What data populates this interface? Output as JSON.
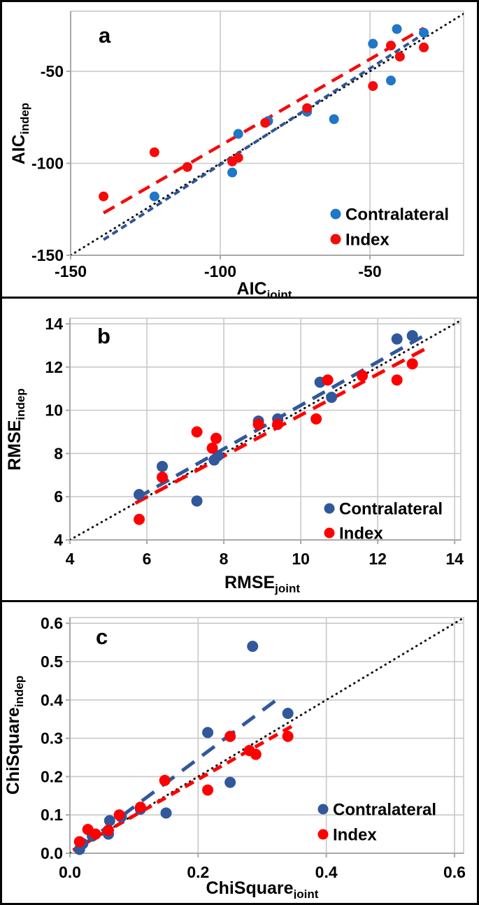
{
  "figure": {
    "background": "#ffffff",
    "border_color": "#060606",
    "grid_color": "#c9c9c9",
    "axis_color": "#a8a8a8",
    "identity_color": "#111111",
    "legend": {
      "items": [
        {
          "label": "Contralateral"
        },
        {
          "label": "Index"
        }
      ]
    }
  },
  "chart_data": [
    {
      "type": "scatter",
      "panel_label": "a",
      "xlabel": "AIC_joint",
      "ylabel": "AIC_indep",
      "x_axis": {
        "title_base": "AIC",
        "title_sub": "joint",
        "lim": [
          -150,
          -18.7
        ],
        "ticks": [
          {
            "v": -150,
            "label": "-150"
          },
          {
            "v": -100,
            "label": "-100"
          },
          {
            "v": -50,
            "label": "-50"
          }
        ]
      },
      "y_axis": {
        "title_base": "AIC",
        "title_sub": "indep",
        "lim": [
          -150,
          -17.3
        ],
        "ticks": [
          {
            "v": -50,
            "label": "-50"
          },
          {
            "v": -100,
            "label": "-100"
          },
          {
            "v": -150,
            "label": "-150"
          }
        ]
      },
      "series": [
        {
          "name": "Contralateral",
          "marker_color": "#2076C7",
          "points": [
            [
              -122,
              -118
            ],
            [
              -96,
              -105
            ],
            [
              -94,
              -84
            ],
            [
              -84,
              -77
            ],
            [
              -71,
              -72
            ],
            [
              -62,
              -76
            ],
            [
              -49,
              -35
            ],
            [
              -43,
              -55
            ],
            [
              -41,
              -27
            ],
            [
              -32,
              -29
            ]
          ]
        },
        {
          "name": "Index",
          "marker_color": "#F40B0B",
          "points": [
            [
              -139,
              -118
            ],
            [
              -122,
              -94
            ],
            [
              -111,
              -102
            ],
            [
              -96,
              -99
            ],
            [
              -94,
              -97
            ],
            [
              -85,
              -78
            ],
            [
              -71,
              -70
            ],
            [
              -49,
              -58
            ],
            [
              -43,
              -36
            ],
            [
              -40,
              -42
            ],
            [
              -32,
              -37
            ]
          ]
        }
      ],
      "trend_lines": [
        {
          "series": "Contralateral",
          "color": "#2F5597",
          "dash": [
            9,
            6
          ],
          "width": 4,
          "from": [
            -139,
            -141.5
          ],
          "to": [
            -30,
            -27.5
          ]
        },
        {
          "series": "Index",
          "color": "#F40B0B",
          "dash": [
            18,
            11
          ],
          "width": 4.5,
          "from": [
            -139,
            -127
          ],
          "to": [
            -32,
            -26.5
          ]
        }
      ],
      "identity_line": {
        "from": [
          -150,
          -150
        ],
        "to": [
          -18.7,
          -18.7
        ]
      },
      "legend_labels": [
        "Contralateral",
        "Index"
      ]
    },
    {
      "type": "scatter",
      "panel_label": "b",
      "xlabel": "RMSE_joint",
      "ylabel": "RMSE_indep",
      "x_axis": {
        "title_base": "RMSE",
        "title_sub": "joint",
        "lim": [
          4,
          14.16
        ],
        "ticks": [
          {
            "v": 4,
            "label": "4"
          },
          {
            "v": 6,
            "label": "6"
          },
          {
            "v": 8,
            "label": "8"
          },
          {
            "v": 10,
            "label": "10"
          },
          {
            "v": 12,
            "label": "12"
          },
          {
            "v": 14,
            "label": "14"
          }
        ]
      },
      "y_axis": {
        "title_base": "RMSE",
        "title_sub": "indep",
        "lim": [
          4,
          14.26
        ],
        "ticks": [
          {
            "v": 14,
            "label": "14"
          },
          {
            "v": 12,
            "label": "12"
          },
          {
            "v": 10,
            "label": "10"
          },
          {
            "v": 8,
            "label": "8"
          },
          {
            "v": 6,
            "label": "6"
          },
          {
            "v": 4,
            "label": "4"
          }
        ]
      },
      "series": [
        {
          "name": "Contralateral",
          "marker_color": "#30589B",
          "points": [
            [
              5.8,
              6.1
            ],
            [
              6.4,
              7.4
            ],
            [
              7.3,
              5.8
            ],
            [
              7.75,
              7.7
            ],
            [
              7.85,
              7.9
            ],
            [
              8.9,
              9.5
            ],
            [
              9.4,
              9.6
            ],
            [
              10.5,
              11.3
            ],
            [
              10.8,
              10.6
            ],
            [
              12.5,
              13.3
            ],
            [
              12.9,
              13.45
            ]
          ]
        },
        {
          "name": "Index",
          "marker_color": "#FF0000",
          "points": [
            [
              5.8,
              4.95
            ],
            [
              6.4,
              6.9
            ],
            [
              7.3,
              9.0
            ],
            [
              7.7,
              8.25
            ],
            [
              7.8,
              8.7
            ],
            [
              8.9,
              9.35
            ],
            [
              9.4,
              9.35
            ],
            [
              10.4,
              9.6
            ],
            [
              10.7,
              11.4
            ],
            [
              11.6,
              11.6
            ],
            [
              12.5,
              11.4
            ],
            [
              12.9,
              12.15
            ]
          ]
        }
      ],
      "trend_lines": [
        {
          "series": "Contralateral",
          "color": "#30589B",
          "dash": [
            20,
            12
          ],
          "width": 5,
          "from": [
            5.75,
            5.95
          ],
          "to": [
            13.15,
            13.4
          ]
        },
        {
          "series": "Index",
          "color": "#FF0000",
          "dash": [
            20,
            12
          ],
          "width": 5,
          "from": [
            5.7,
            5.7
          ],
          "to": [
            13.35,
            12.95
          ]
        }
      ],
      "identity_line": {
        "from": [
          4,
          4
        ],
        "to": [
          14.16,
          14.16
        ]
      },
      "legend_labels": [
        "Contralateral",
        "Index"
      ]
    },
    {
      "type": "scatter",
      "panel_label": "c",
      "xlabel": "ChiSquare_joint",
      "ylabel": "ChiSquare_indep",
      "x_axis": {
        "title_base": "ChiSquare",
        "title_sub": "joint",
        "lim": [
          0,
          0.6142
        ],
        "ticks": [
          {
            "v": 0,
            "label": "0.0"
          },
          {
            "v": 0.2,
            "label": "0.2"
          },
          {
            "v": 0.4,
            "label": "0.4"
          },
          {
            "v": 0.6,
            "label": "0.6"
          }
        ]
      },
      "y_axis": {
        "title_base": "ChiSquare",
        "title_sub": "indep",
        "lim": [
          0,
          0.615
        ],
        "ticks": [
          {
            "v": 0.6,
            "label": "0.6"
          },
          {
            "v": 0.5,
            "label": "0.5"
          },
          {
            "v": 0.4,
            "label": "0.4"
          },
          {
            "v": 0.3,
            "label": "0.3"
          },
          {
            "v": 0.2,
            "label": "0.2"
          },
          {
            "v": 0.1,
            "label": "0.1"
          },
          {
            "v": 0,
            "label": "0.0"
          }
        ]
      },
      "series": [
        {
          "name": "Contralateral",
          "marker_color": "#30589B",
          "points": [
            [
              0.015,
              0.01
            ],
            [
              0.02,
              0.025
            ],
            [
              0.035,
              0.045
            ],
            [
              0.06,
              0.05
            ],
            [
              0.062,
              0.085
            ],
            [
              0.08,
              0.095
            ],
            [
              0.11,
              0.115
            ],
            [
              0.15,
              0.105
            ],
            [
              0.215,
              0.315
            ],
            [
              0.25,
              0.185
            ],
            [
              0.285,
              0.54
            ],
            [
              0.34,
              0.365
            ]
          ]
        },
        {
          "name": "Index",
          "marker_color": "#FF0000",
          "points": [
            [
              0.015,
              0.03
            ],
            [
              0.028,
              0.062
            ],
            [
              0.04,
              0.05
            ],
            [
              0.06,
              0.06
            ],
            [
              0.077,
              0.1
            ],
            [
              0.11,
              0.12
            ],
            [
              0.148,
              0.19
            ],
            [
              0.215,
              0.165
            ],
            [
              0.25,
              0.305
            ],
            [
              0.28,
              0.268
            ],
            [
              0.29,
              0.258
            ],
            [
              0.34,
              0.305
            ]
          ]
        }
      ],
      "trend_lines": [
        {
          "series": "Contralateral",
          "color": "#30589B",
          "dash": [
            22,
            14
          ],
          "width": 5,
          "from": [
            0.018,
            0.018
          ],
          "to": [
            0.33,
            0.41
          ]
        },
        {
          "series": "Index",
          "color": "#FF0000",
          "dash": [
            14,
            9
          ],
          "width": 5,
          "from": [
            0.005,
            0.008
          ],
          "to": [
            0.35,
            0.335
          ]
        }
      ],
      "identity_line": {
        "from": [
          0,
          0
        ],
        "to": [
          0.6142,
          0.6142
        ]
      },
      "legend_labels": [
        "Contralateral",
        "Index"
      ]
    }
  ]
}
